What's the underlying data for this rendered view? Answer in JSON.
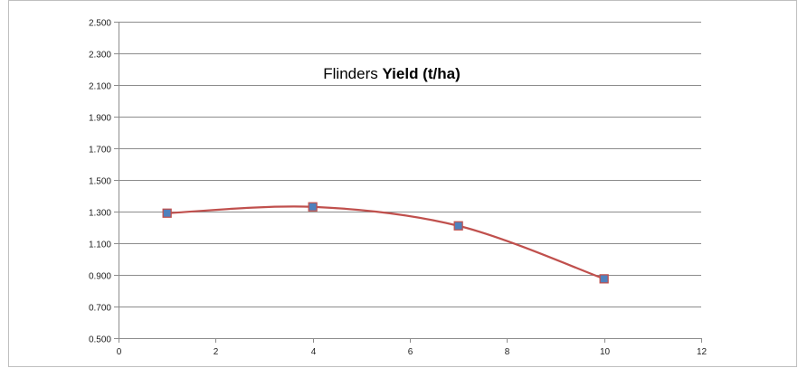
{
  "chart_data": {
    "type": "scatter",
    "title": {
      "plain": "Flinders",
      "bold": "Yield (t/ha)"
    },
    "xlabel": "",
    "ylabel": "",
    "xlim": [
      0,
      12
    ],
    "ylim": [
      0.5,
      2.5
    ],
    "x_ticks": [
      0,
      2,
      4,
      6,
      8,
      10,
      12
    ],
    "y_ticks": [
      0.5,
      0.7,
      0.9,
      1.1,
      1.3,
      1.5,
      1.7,
      1.9,
      2.1,
      2.3,
      2.5
    ],
    "x_tick_labels": [
      "0",
      "2",
      "4",
      "6",
      "8",
      "10",
      "12"
    ],
    "y_tick_labels": [
      "0.500",
      "0.700",
      "0.900",
      "1.100",
      "1.300",
      "1.500",
      "1.700",
      "1.900",
      "2.100",
      "2.300",
      "2.500"
    ],
    "grid": "horizontal",
    "legend": "none",
    "smoothed": true,
    "series": [
      {
        "x": [
          1,
          4,
          7,
          10
        ],
        "y": [
          1.29,
          1.33,
          1.21,
          0.875
        ],
        "line_color": "#c0504d",
        "marker": "square",
        "marker_color": "#4f81bd"
      }
    ]
  }
}
